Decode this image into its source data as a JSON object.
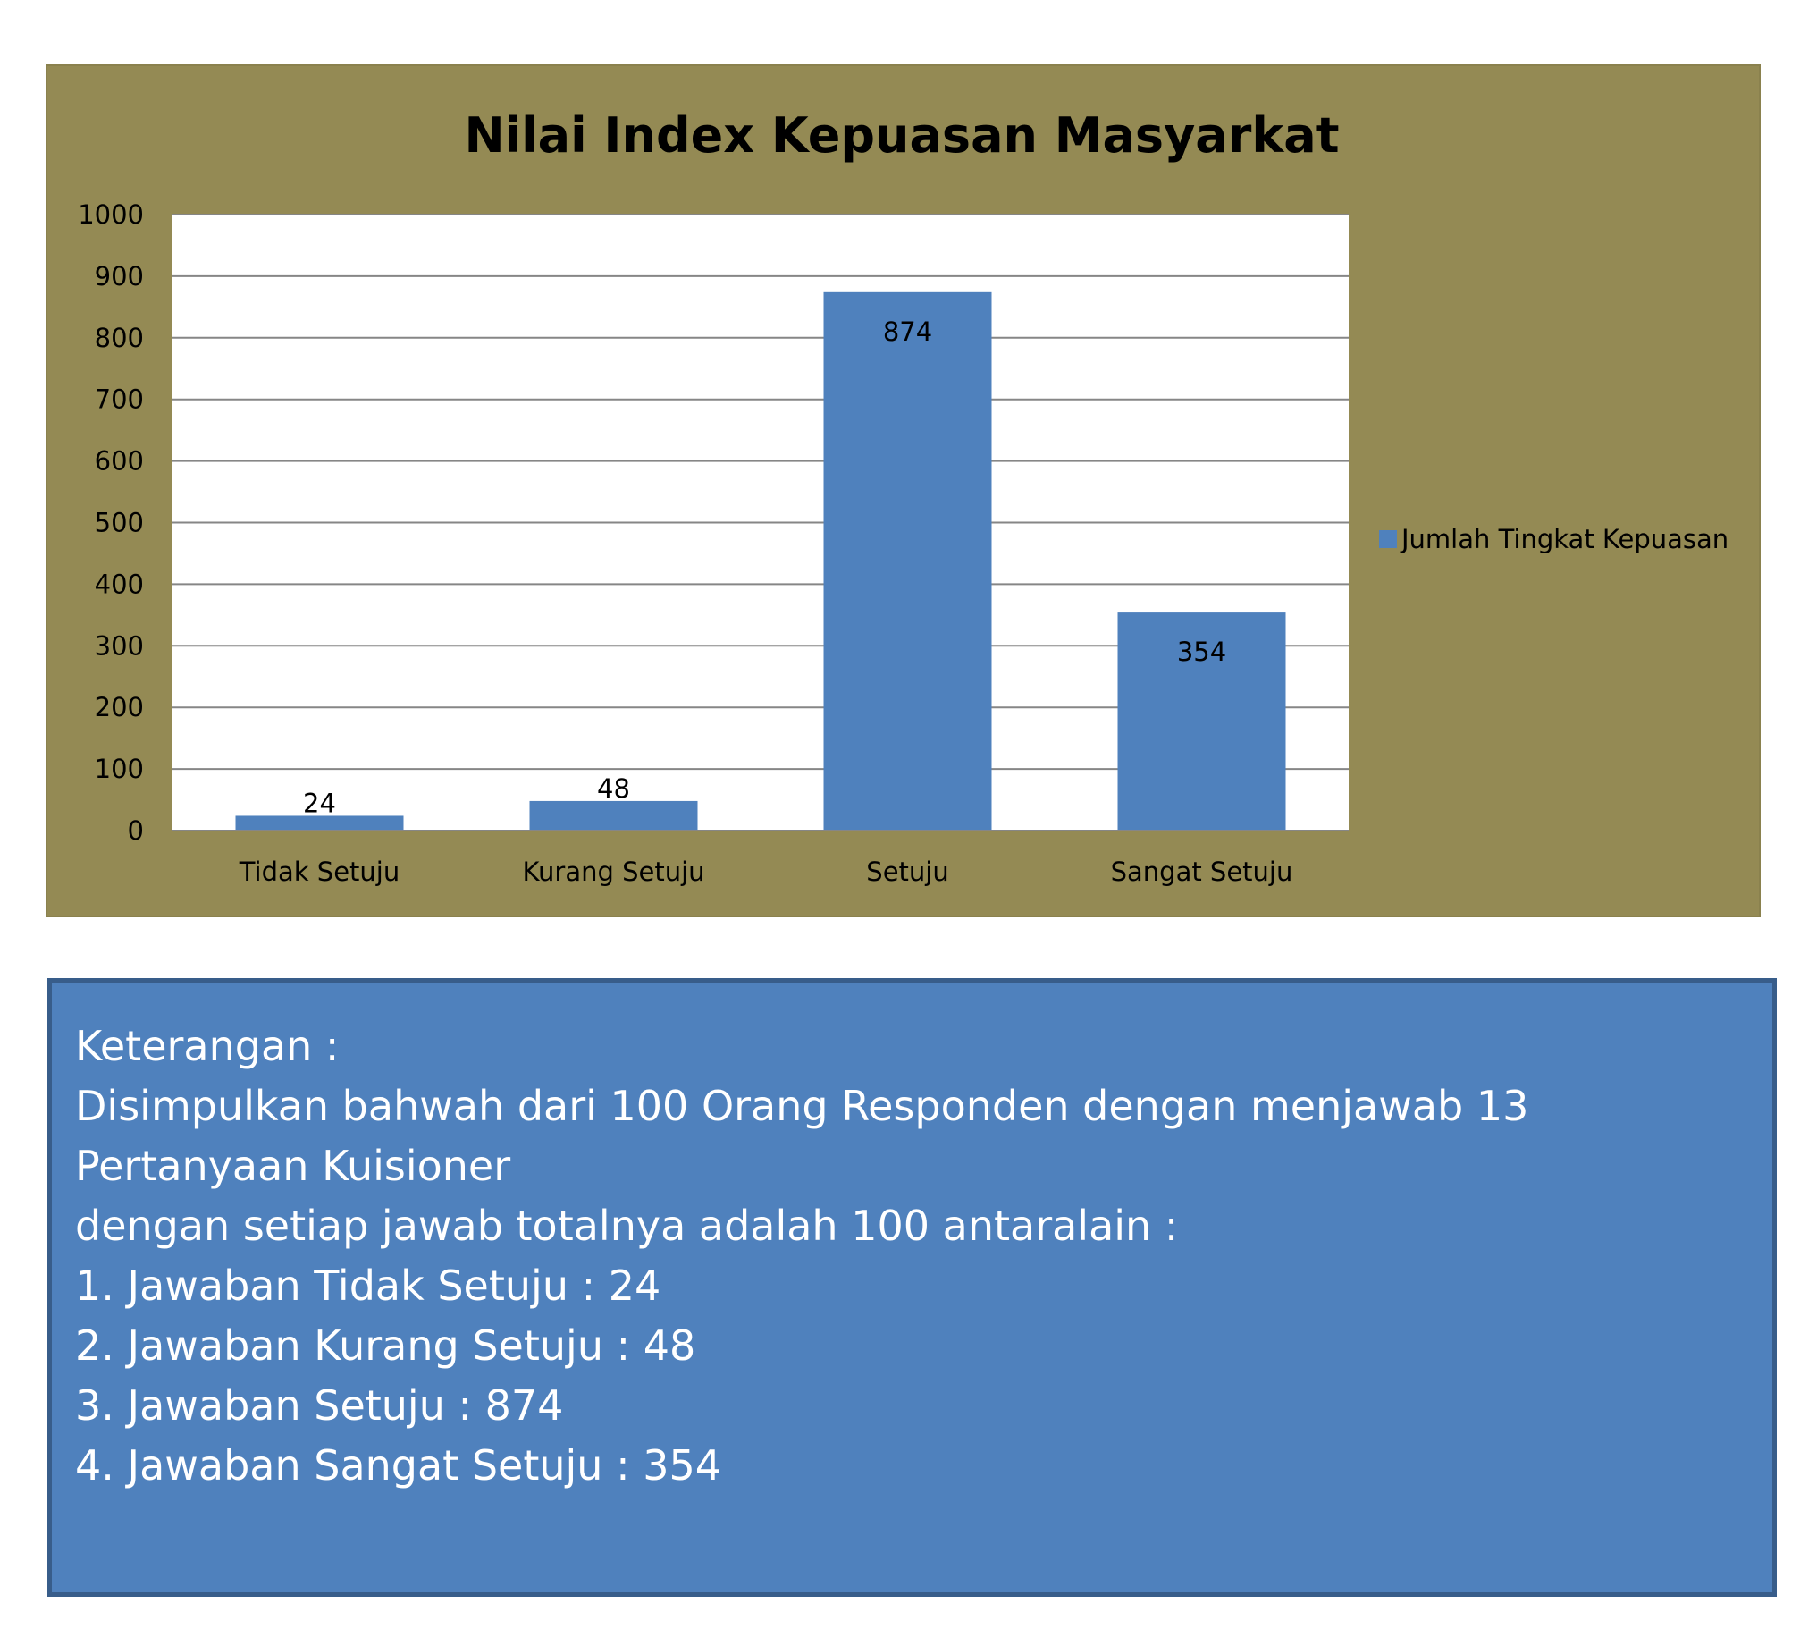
{
  "chart_data": {
    "type": "bar",
    "title": "Nilai Index Kepuasan Masyarkat",
    "categories": [
      "Tidak Setuju",
      "Kurang Setuju",
      "Setuju",
      "Sangat Setuju"
    ],
    "series": [
      {
        "name": "Jumlah Tingkat Kepuasan",
        "values": [
          24,
          48,
          874,
          354
        ]
      }
    ],
    "ylim": [
      0,
      1000
    ],
    "yticks": [
      0,
      100,
      200,
      300,
      400,
      500,
      600,
      700,
      800,
      900,
      1000
    ],
    "grid": true,
    "legend": "right",
    "colors": {
      "bar": "#4f81bd",
      "panel": "#948a54",
      "plot_bg": "#ffffff",
      "grid": "#868686"
    }
  },
  "note": {
    "heading": "Keterangan :",
    "line1": "Disimpulkan bahwah dari 100 Orang Responden dengan menjawab 13",
    "line2": "Pertanyaan Kuisioner",
    "line3": "dengan setiap jawab totalnya adalah 100 antaralain :",
    "items": [
      "1. Jawaban Tidak Setuju : 24",
      "2. Jawaban Kurang Setuju : 48",
      "3. Jawaban Setuju : 874",
      "4. Jawaban Sangat Setuju : 354"
    ],
    "colors": {
      "background": "#4f81bd",
      "border": "#385d8a",
      "text": "#ffffff"
    }
  }
}
